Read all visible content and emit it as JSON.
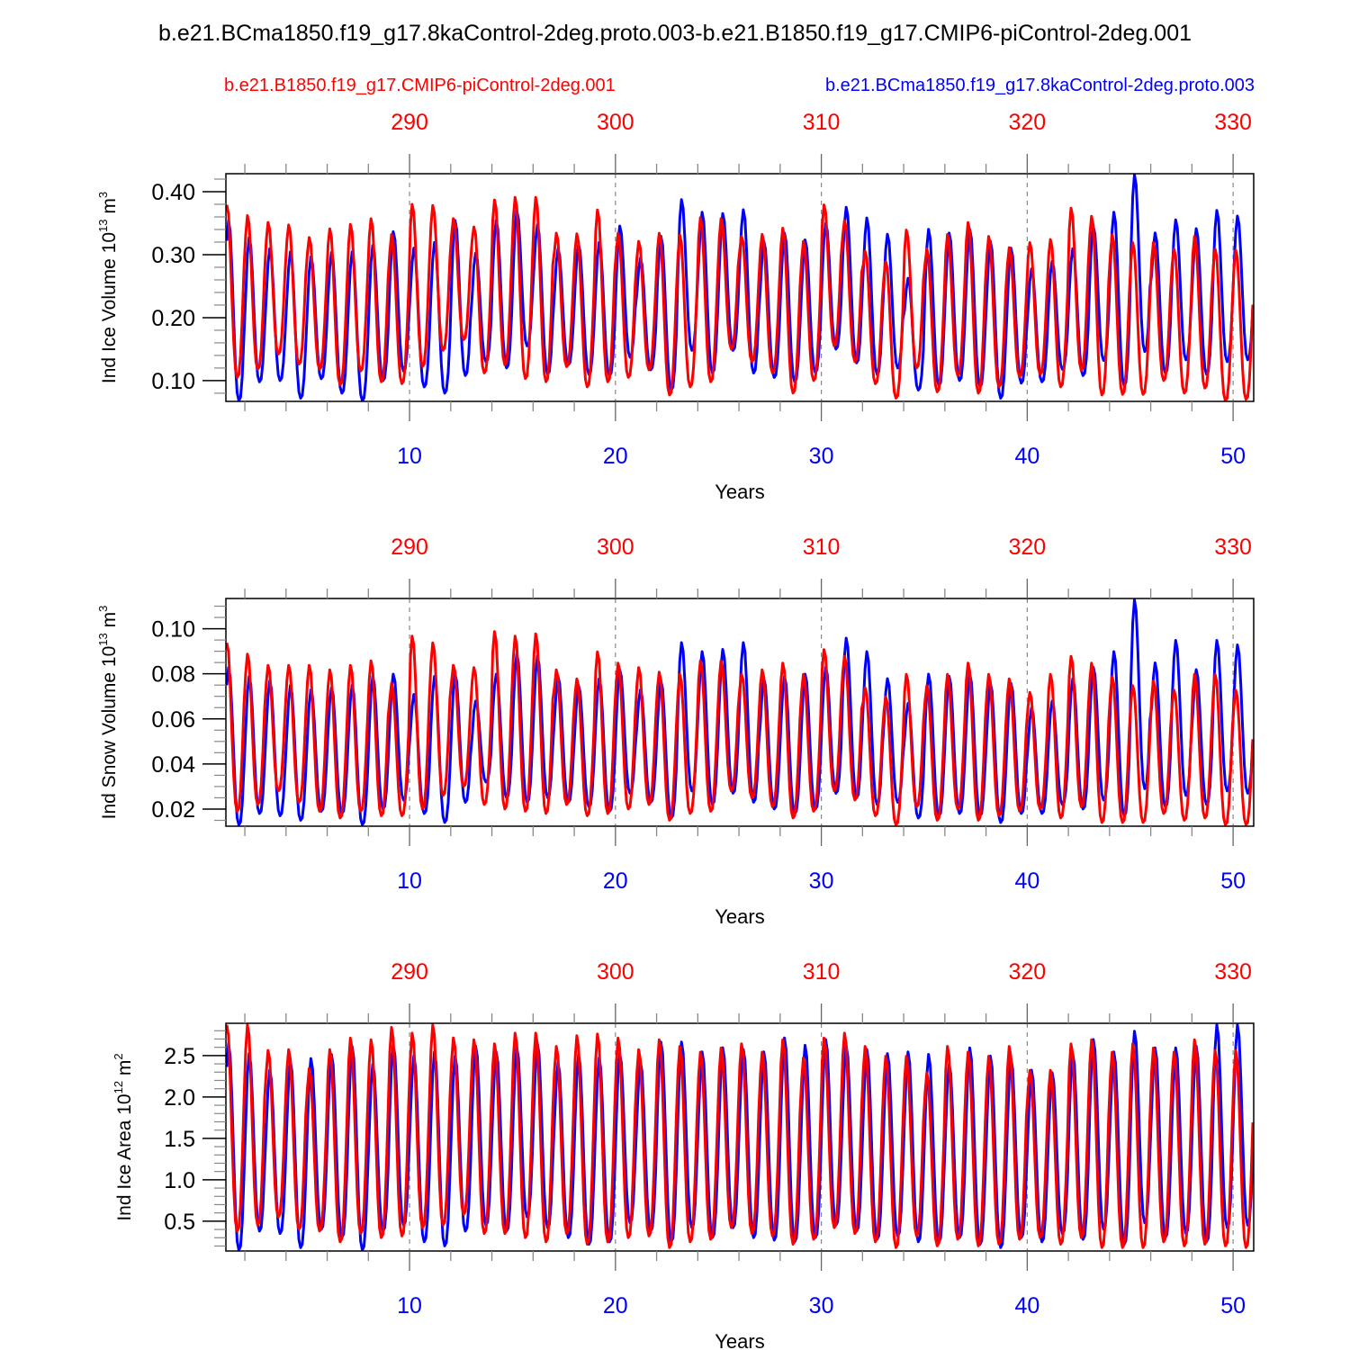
{
  "chart_data": {
    "type": "line",
    "title": "b.e21.BCma1850.f19_g17.8kaControl-2deg.proto.003-b.e21.B1850.f19_g17.CMIP6-piControl-2deg.001",
    "legend": {
      "left_label": "b.e21.B1850.f19_g17.CMIP6-piControl-2deg.001",
      "right_label": "b.e21.BCma1850.f19_g17.8kaControl-2deg.proto.003",
      "placement": "top"
    },
    "colors": {
      "blue": "#0000ff",
      "red": "#ff0000",
      "axis": "#000000"
    },
    "x_bottom": {
      "label": "Years",
      "ticks": [
        10,
        20,
        30,
        40,
        50
      ],
      "range": [
        1.08,
        51.0
      ],
      "color": "#0000ff"
    },
    "x_top": {
      "ticks": [
        290,
        300,
        310,
        320,
        330
      ],
      "offset": 280,
      "color": "#ff0000"
    },
    "panels": [
      {
        "id": "ice-volume",
        "ylabel": "Ind Ice Volume 10",
        "ylabel_exp": "13",
        "ylabel_unit": " m",
        "ylabel_unit_exp": "3",
        "ylim": [
          0.067,
          0.4286
        ],
        "yticks": [
          "0.10",
          "0.20",
          "0.30",
          "0.40"
        ],
        "ytick_values": [
          0.1,
          0.2,
          0.3,
          0.4
        ],
        "yminor_step": 0.02,
        "series": [
          {
            "name": "b.e21.BCma1850.f19_g17.8kaControl-2deg.proto.003",
            "color": "#0000ff",
            "annual_max": [
              0.355,
              0.328,
              0.31,
              0.305,
              0.297,
              0.304,
              0.305,
              0.315,
              0.337,
              0.311,
              0.32,
              0.355,
              0.303,
              0.355,
              0.37,
              0.348,
              0.31,
              0.317,
              0.32,
              0.346,
              0.295,
              0.33,
              0.388,
              0.368,
              0.366,
              0.372,
              0.322,
              0.335,
              0.324,
              0.35,
              0.376,
              0.359,
              0.333,
              0.263,
              0.341,
              0.335,
              0.341,
              0.322,
              0.311,
              0.278,
              0.29,
              0.31,
              0.345,
              0.368,
              0.428,
              0.335,
              0.356,
              0.342,
              0.371,
              0.362
            ],
            "annual_min": [
              0.068,
              0.098,
              0.1,
              0.072,
              0.103,
              0.08,
              0.068,
              0.1,
              0.115,
              0.09,
              0.08,
              0.108,
              0.13,
              0.12,
              0.155,
              0.11,
              0.125,
              0.11,
              0.108,
              0.137,
              0.117,
              0.085,
              0.148,
              0.112,
              0.148,
              0.112,
              0.105,
              0.098,
              0.113,
              0.15,
              0.128,
              0.11,
              0.12,
              0.085,
              0.092,
              0.1,
              0.09,
              0.072,
              0.096,
              0.098,
              0.118,
              0.108,
              0.132,
              0.092,
              0.146,
              0.112,
              0.133,
              0.11,
              0.13,
              0.133
            ]
          },
          {
            "name": "b.e21.B1850.f19_g17.CMIP6-piControl-2deg.001",
            "color": "#ff0000",
            "annual_max": [
              0.38,
              0.363,
              0.352,
              0.348,
              0.328,
              0.342,
              0.349,
              0.358,
              0.333,
              0.381,
              0.379,
              0.358,
              0.345,
              0.388,
              0.392,
              0.392,
              0.335,
              0.334,
              0.372,
              0.335,
              0.322,
              0.335,
              0.332,
              0.36,
              0.358,
              0.33,
              0.333,
              0.343,
              0.322,
              0.38,
              0.355,
              0.306,
              0.29,
              0.34,
              0.31,
              0.333,
              0.352,
              0.33,
              0.312,
              0.32,
              0.325,
              0.375,
              0.362,
              0.333,
              0.32,
              0.32,
              0.31,
              0.33,
              0.31,
              0.308
            ],
            "annual_min": [
              0.105,
              0.118,
              0.142,
              0.126,
              0.118,
              0.093,
              0.115,
              0.098,
              0.095,
              0.122,
              0.148,
              0.165,
              0.112,
              0.125,
              0.103,
              0.098,
              0.122,
              0.09,
              0.098,
              0.105,
              0.117,
              0.077,
              0.09,
              0.098,
              0.15,
              0.13,
              0.112,
              0.08,
              0.1,
              0.155,
              0.13,
              0.095,
              0.072,
              0.12,
              0.082,
              0.108,
              0.08,
              0.09,
              0.106,
              0.11,
              0.09,
              0.116,
              0.077,
              0.078,
              0.078,
              0.1,
              0.08,
              0.088,
              0.068,
              0.07
            ]
          }
        ]
      },
      {
        "id": "snow-volume",
        "ylabel": "Ind Snow Volume 10",
        "ylabel_exp": "13",
        "ylabel_unit": " m",
        "ylabel_unit_exp": "3",
        "ylim": [
          0.0124,
          0.1134
        ],
        "yticks": [
          "0.02",
          "0.04",
          "0.06",
          "0.08",
          "0.10"
        ],
        "ytick_values": [
          0.02,
          0.04,
          0.06,
          0.08,
          0.1
        ],
        "yminor_step": 0.005,
        "series": [
          {
            "name": "b.e21.BCma1850.f19_g17.8kaControl-2deg.proto.003",
            "color": "#0000ff",
            "annual_max": [
              0.083,
              0.079,
              0.077,
              0.075,
              0.073,
              0.074,
              0.075,
              0.079,
              0.08,
              0.071,
              0.079,
              0.08,
              0.068,
              0.08,
              0.089,
              0.088,
              0.079,
              0.075,
              0.078,
              0.082,
              0.073,
              0.077,
              0.094,
              0.09,
              0.091,
              0.094,
              0.078,
              0.079,
              0.08,
              0.083,
              0.096,
              0.09,
              0.078,
              0.067,
              0.08,
              0.079,
              0.08,
              0.076,
              0.076,
              0.065,
              0.068,
              0.078,
              0.083,
              0.09,
              0.113,
              0.085,
              0.095,
              0.082,
              0.095,
              0.093
            ],
            "annual_min": [
              0.013,
              0.018,
              0.017,
              0.015,
              0.019,
              0.018,
              0.013,
              0.02,
              0.024,
              0.018,
              0.014,
              0.023,
              0.032,
              0.025,
              0.023,
              0.025,
              0.023,
              0.021,
              0.019,
              0.027,
              0.023,
              0.016,
              0.028,
              0.022,
              0.027,
              0.023,
              0.02,
              0.018,
              0.02,
              0.027,
              0.025,
              0.022,
              0.023,
              0.016,
              0.017,
              0.018,
              0.017,
              0.014,
              0.018,
              0.018,
              0.022,
              0.02,
              0.024,
              0.017,
              0.029,
              0.021,
              0.026,
              0.022,
              0.028,
              0.027
            ]
          },
          {
            "name": "b.e21.B1850.f19_g17.CMIP6-piControl-2deg.001",
            "color": "#ff0000",
            "annual_max": [
              0.094,
              0.089,
              0.084,
              0.084,
              0.084,
              0.082,
              0.084,
              0.086,
              0.076,
              0.097,
              0.094,
              0.084,
              0.083,
              0.099,
              0.097,
              0.098,
              0.082,
              0.078,
              0.09,
              0.085,
              0.083,
              0.081,
              0.08,
              0.086,
              0.086,
              0.08,
              0.082,
              0.085,
              0.08,
              0.091,
              0.088,
              0.074,
              0.07,
              0.08,
              0.075,
              0.08,
              0.085,
              0.08,
              0.078,
              0.072,
              0.08,
              0.088,
              0.085,
              0.079,
              0.075,
              0.077,
              0.073,
              0.08,
              0.08,
              0.073
            ],
            "annual_min": [
              0.019,
              0.022,
              0.028,
              0.023,
              0.019,
              0.016,
              0.019,
              0.017,
              0.017,
              0.02,
              0.026,
              0.03,
              0.022,
              0.02,
              0.019,
              0.018,
              0.022,
              0.017,
              0.018,
              0.02,
              0.022,
              0.015,
              0.018,
              0.019,
              0.028,
              0.025,
              0.021,
              0.016,
              0.019,
              0.028,
              0.024,
              0.017,
              0.013,
              0.021,
              0.015,
              0.02,
              0.015,
              0.017,
              0.019,
              0.02,
              0.016,
              0.021,
              0.014,
              0.014,
              0.014,
              0.018,
              0.015,
              0.016,
              0.013,
              0.013
            ]
          }
        ]
      },
      {
        "id": "ice-area",
        "ylabel": "Ind Ice Area 10",
        "ylabel_exp": "12",
        "ylabel_unit": " m",
        "ylabel_unit_exp": "2",
        "ylim": [
          0.14,
          2.89
        ],
        "yticks": [
          "0.5",
          "1.0",
          "1.5",
          "2.0",
          "2.5"
        ],
        "ytick_values": [
          0.5,
          1.0,
          1.5,
          2.0,
          2.5
        ],
        "yminor_step": 0.1,
        "series": [
          {
            "name": "b.e21.BCma1850.f19_g17.8kaControl-2deg.proto.003",
            "color": "#0000ff",
            "annual_max": [
              2.65,
              2.53,
              2.33,
              2.44,
              2.47,
              2.52,
              2.62,
              2.4,
              2.63,
              2.5,
              2.55,
              2.5,
              2.62,
              2.55,
              2.6,
              2.65,
              2.42,
              2.52,
              2.48,
              2.53,
              2.43,
              2.67,
              2.67,
              2.55,
              2.6,
              2.58,
              2.55,
              2.72,
              2.63,
              2.7,
              2.62,
              2.58,
              2.53,
              2.55,
              2.52,
              2.4,
              2.6,
              2.5,
              2.47,
              2.33,
              2.3,
              2.53,
              2.7,
              2.55,
              2.8,
              2.6,
              2.6,
              2.62,
              2.88,
              2.88
            ],
            "annual_min": [
              0.15,
              0.38,
              0.35,
              0.18,
              0.4,
              0.3,
              0.15,
              0.38,
              0.45,
              0.25,
              0.2,
              0.38,
              0.45,
              0.38,
              0.55,
              0.42,
              0.3,
              0.22,
              0.25,
              0.48,
              0.38,
              0.25,
              0.42,
              0.3,
              0.42,
              0.3,
              0.27,
              0.25,
              0.3,
              0.45,
              0.38,
              0.28,
              0.32,
              0.25,
              0.25,
              0.3,
              0.22,
              0.18,
              0.3,
              0.25,
              0.35,
              0.28,
              0.4,
              0.22,
              0.48,
              0.3,
              0.35,
              0.25,
              0.42,
              0.45
            ]
          },
          {
            "name": "b.e21.B1850.f19_g17.CMIP6-piControl-2deg.001",
            "color": "#ff0000",
            "annual_max": [
              2.88,
              2.88,
              2.57,
              2.58,
              2.35,
              2.58,
              2.72,
              2.7,
              2.85,
              2.78,
              2.88,
              2.72,
              2.7,
              2.65,
              2.78,
              2.78,
              2.62,
              2.75,
              2.77,
              2.72,
              2.58,
              2.7,
              2.62,
              2.55,
              2.6,
              2.65,
              2.55,
              2.7,
              2.48,
              2.72,
              2.78,
              2.62,
              2.5,
              2.5,
              2.3,
              2.62,
              2.55,
              2.5,
              2.62,
              2.33,
              2.33,
              2.65,
              2.7,
              2.55,
              2.65,
              2.6,
              2.55,
              2.7,
              2.57,
              2.57
            ],
            "annual_min": [
              0.38,
              0.45,
              0.55,
              0.4,
              0.38,
              0.25,
              0.35,
              0.3,
              0.32,
              0.42,
              0.45,
              0.58,
              0.35,
              0.35,
              0.3,
              0.25,
              0.35,
              0.22,
              0.25,
              0.3,
              0.32,
              0.18,
              0.25,
              0.28,
              0.42,
              0.35,
              0.32,
              0.22,
              0.28,
              0.42,
              0.35,
              0.25,
              0.18,
              0.32,
              0.2,
              0.28,
              0.2,
              0.22,
              0.28,
              0.3,
              0.22,
              0.3,
              0.18,
              0.18,
              0.18,
              0.25,
              0.2,
              0.22,
              0.2,
              0.18
            ]
          }
        ]
      }
    ]
  }
}
